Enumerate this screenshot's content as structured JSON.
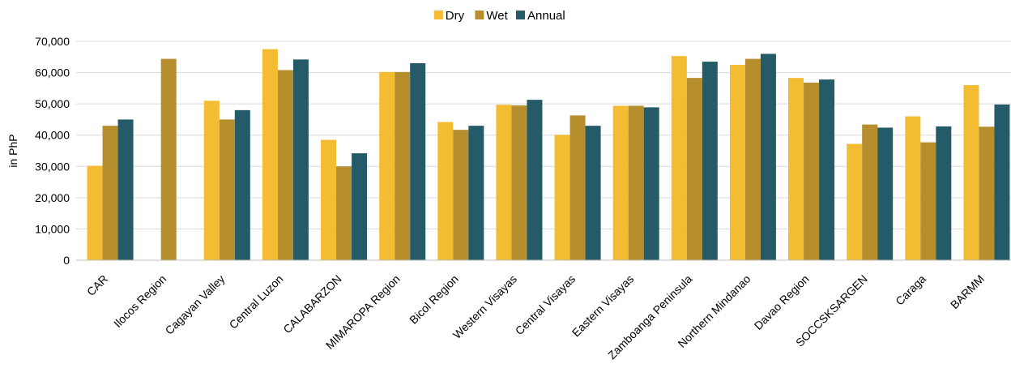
{
  "chart_data": {
    "type": "bar",
    "title": "",
    "xlabel": "",
    "ylabel": "in PhP",
    "ylim": [
      0,
      70000
    ],
    "yticks": [
      0,
      10000,
      20000,
      30000,
      40000,
      50000,
      60000,
      70000
    ],
    "ytick_labels": [
      "0",
      "10,000",
      "20,000",
      "30,000",
      "40,000",
      "50,000",
      "60,000",
      "70,000"
    ],
    "grid": true,
    "legend_position": "top-center",
    "categories": [
      "CAR",
      "Ilocos Region",
      "Cagayan Valley",
      "Central Luzon",
      "CALABARZON",
      "MIMAROPA Region",
      "Bicol Region",
      "Western Visayas",
      "Central Visayas",
      "Eastern Visayas",
      "Zamboanga Peninsula",
      "Northern Mindanao",
      "Davao Region",
      "SOCCSKSARGEN",
      "Caraga",
      "BARMM"
    ],
    "series": [
      {
        "name": "Dry",
        "color": "#F3BC33",
        "values": [
          30200,
          null,
          51000,
          67500,
          38500,
          60200,
          44200,
          49700,
          40100,
          49400,
          65300,
          62500,
          58300,
          37200,
          46000,
          56000
        ]
      },
      {
        "name": "Wet",
        "color": "#B68E2E",
        "values": [
          43000,
          64400,
          45000,
          60800,
          30000,
          60200,
          41700,
          49500,
          46300,
          49400,
          58300,
          64400,
          56800,
          43400,
          37700,
          42700
        ]
      },
      {
        "name": "Annual",
        "color": "#255A69",
        "values": [
          45000,
          null,
          48000,
          64200,
          34200,
          63000,
          43000,
          51300,
          43000,
          48900,
          63500,
          66000,
          57800,
          42400,
          42800,
          49800
        ]
      }
    ]
  }
}
